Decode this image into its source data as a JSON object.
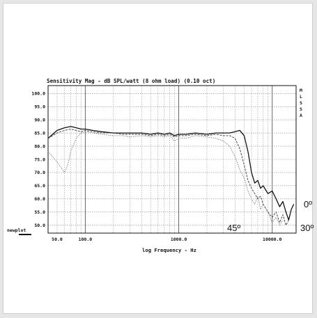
{
  "chart_data": {
    "type": "line",
    "title": "Sensitivity Mag - dB SPL/watt (8 ohm load) (0.10 oct)",
    "xlabel": "log Frequency - Hz",
    "ylabel": "",
    "x_scale": "log",
    "xlim": [
      40,
      18000
    ],
    "ylim": [
      47,
      103
    ],
    "grid": true,
    "y_ticks": [
      100.0,
      95.0,
      90.0,
      85.0,
      80.0,
      75.0,
      70.0,
      65.0,
      60.0,
      55.0,
      50.0
    ],
    "y_tick_labels": [
      "100.0",
      "95.0",
      "90.0",
      "85.0",
      "80.0",
      "75.0",
      "70.0",
      "65.0",
      "60.0",
      "55.0",
      "50.0"
    ],
    "x_ticks": [
      50,
      100,
      1000,
      10000
    ],
    "x_tick_labels": [
      "50.0",
      "100.0",
      "1000.0",
      "10000.0"
    ],
    "right_side_label": "M L S S A",
    "corner_label": "newplot",
    "annotations": [
      "0º",
      "45º",
      "30º"
    ],
    "series": [
      {
        "name": "0º",
        "x": [
          40,
          50,
          60,
          70,
          80,
          90,
          100,
          120,
          150,
          200,
          250,
          300,
          400,
          500,
          600,
          700,
          800,
          900,
          1000,
          1200,
          1500,
          2000,
          2500,
          3000,
          3500,
          4000,
          4500,
          5000,
          5500,
          6000,
          6500,
          7000,
          7500,
          8000,
          9000,
          10000,
          11000,
          12000,
          13000,
          14000,
          15000,
          16000,
          17000
        ],
        "y": [
          83,
          86,
          87,
          87.5,
          87,
          86.5,
          86.5,
          86,
          85.5,
          85,
          85,
          85,
          85,
          84.5,
          85,
          84.5,
          85,
          84,
          84.5,
          84.5,
          85,
          84.5,
          85,
          85,
          85,
          85.5,
          86,
          84,
          78,
          70,
          66,
          67,
          64,
          65,
          62,
          63,
          60,
          57,
          59,
          55,
          52,
          56,
          58
        ]
      },
      {
        "name": "30º",
        "x": [
          40,
          50,
          60,
          70,
          80,
          90,
          100,
          120,
          150,
          200,
          250,
          300,
          400,
          500,
          600,
          700,
          800,
          900,
          1000,
          1200,
          1500,
          2000,
          2500,
          3000,
          3500,
          4000,
          4500,
          5000,
          5500,
          6000,
          6500,
          7000,
          7500,
          8000,
          9000,
          10000,
          11000,
          12000,
          13000,
          14000,
          15000
        ],
        "y": [
          83,
          85,
          86,
          86.5,
          86,
          85.5,
          86,
          85.5,
          85,
          85,
          84.5,
          84.5,
          84.5,
          84,
          84.5,
          84,
          84.5,
          83.5,
          84,
          84,
          84.5,
          84,
          84.5,
          84,
          84,
          83,
          79,
          73,
          67,
          64,
          62,
          60,
          61,
          58,
          55,
          53,
          55,
          51,
          54,
          50,
          52
        ]
      },
      {
        "name": "45º",
        "x": [
          40,
          50,
          55,
          60,
          65,
          70,
          80,
          90,
          100,
          120,
          150,
          200,
          250,
          300,
          400,
          500,
          600,
          700,
          800,
          900,
          1000,
          1200,
          1500,
          2000,
          2500,
          3000,
          3500,
          4000,
          4500,
          5000,
          5500,
          6000,
          6500,
          7000,
          7500,
          8000,
          9000,
          10000,
          11000,
          12000,
          13000
        ],
        "y": [
          78,
          74,
          72,
          70,
          73,
          78,
          83,
          85,
          85.5,
          85,
          84.5,
          84,
          84,
          83.5,
          84,
          83.5,
          84,
          83.5,
          84,
          82,
          83,
          83,
          84,
          83.5,
          83,
          82,
          80,
          76,
          71,
          68,
          63,
          60,
          58,
          61,
          56,
          58,
          55,
          51,
          53,
          50,
          52
        ]
      }
    ]
  }
}
